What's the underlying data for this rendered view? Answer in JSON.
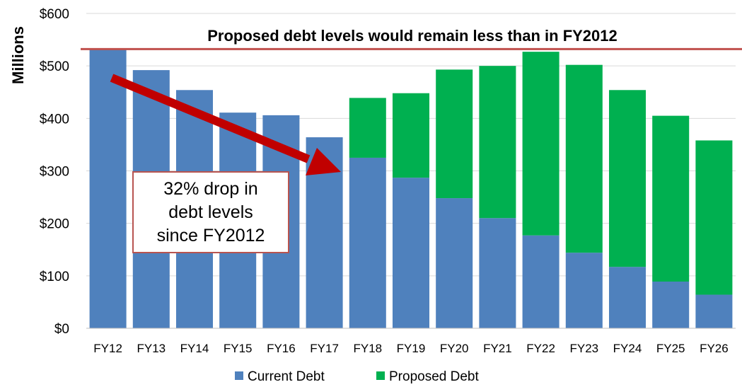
{
  "chart_data": {
    "type": "bar",
    "stacked": true,
    "ylabel": "Millions",
    "ylim": [
      0,
      600
    ],
    "yticks": [
      "$0",
      "$100",
      "$200",
      "$300",
      "$400",
      "$500",
      "$600"
    ],
    "categories": [
      "FY12",
      "FY13",
      "FY14",
      "FY15",
      "FY16",
      "FY17",
      "FY18",
      "FY19",
      "FY20",
      "FY21",
      "FY22",
      "FY23",
      "FY24",
      "FY25",
      "FY26"
    ],
    "series": [
      {
        "name": "Current Debt",
        "color": "#4f81bd",
        "values": [
          532,
          492,
          454,
          411,
          406,
          364,
          325,
          287,
          248,
          210,
          177,
          144,
          117,
          89,
          64
        ]
      },
      {
        "name": "Proposed Debt",
        "color": "#00b050",
        "values": [
          0,
          0,
          0,
          0,
          0,
          0,
          114,
          161,
          245,
          290,
          350,
          358,
          337,
          316,
          294
        ]
      }
    ],
    "reference_line": {
      "value": 532,
      "label": "Proposed debt levels would remain less than in FY2012",
      "color": "#c0504d"
    },
    "annotation": {
      "text": "32% drop in\ndebt levels\nsince FY2012",
      "arrow_color": "#c00000"
    },
    "grid": true,
    "legend": "bottom"
  }
}
